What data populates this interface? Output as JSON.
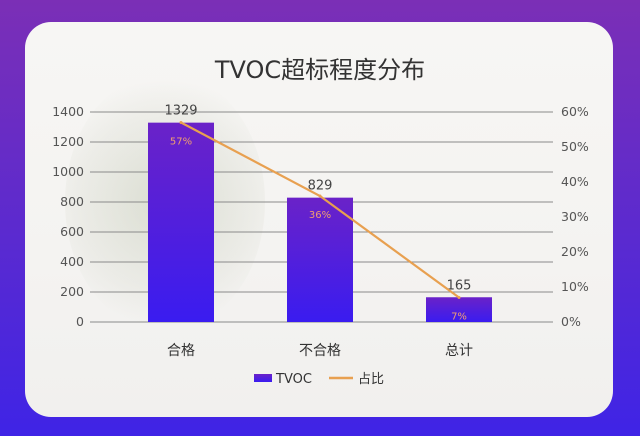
{
  "chart_data": {
    "type": "bar+line",
    "title": "TVOC超标程度分布",
    "categories": [
      "合格",
      "不合格",
      "总计"
    ],
    "series": [
      {
        "name": "TVOC",
        "type": "bar",
        "axis": "left",
        "values": [
          1329,
          829,
          165
        ],
        "color": "#4a1fe0",
        "data_labels": [
          "1329",
          "829",
          "165"
        ]
      },
      {
        "name": "占比",
        "type": "line",
        "axis": "right",
        "values": [
          57,
          36,
          7
        ],
        "color": "#e8a050",
        "data_labels": [
          "57%",
          "36%",
          "7%"
        ]
      }
    ],
    "left_axis": {
      "ylim": [
        0,
        1400
      ],
      "ticks": [
        "0",
        "200",
        "400",
        "600",
        "800",
        "1000",
        "1200",
        "1400"
      ]
    },
    "right_axis": {
      "ylim": [
        0,
        60
      ],
      "ticks": [
        "0%",
        "10%",
        "20%",
        "30%",
        "40%",
        "50%",
        "60%"
      ]
    },
    "grid": true,
    "legend": "bottom"
  }
}
